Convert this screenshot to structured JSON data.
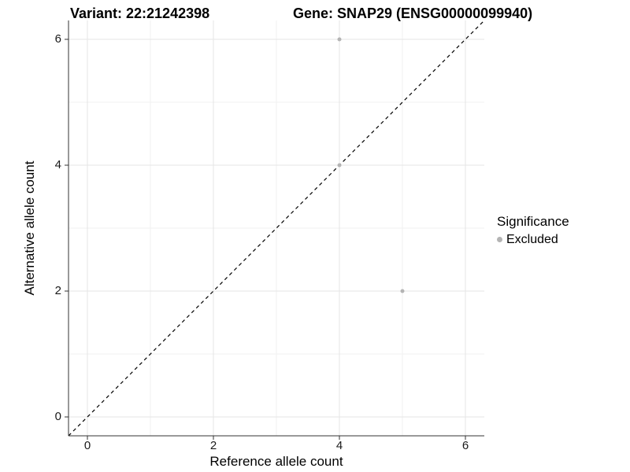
{
  "chart_data": {
    "type": "scatter",
    "titles": {
      "left": "Variant: 22:21242398",
      "right": "Gene: SNAP29 (ENSG00000099940)"
    },
    "xlabel": "Reference allele count",
    "ylabel": "Alternative allele count",
    "xlim": [
      -0.3,
      6.3
    ],
    "ylim": [
      -0.3,
      6.3
    ],
    "x_ticks": [
      0,
      2,
      4,
      6
    ],
    "y_ticks": [
      0,
      2,
      4,
      6
    ],
    "x_minor_ticks": [
      1,
      3,
      5
    ],
    "y_minor_ticks": [
      1,
      3,
      5
    ],
    "grid": true,
    "series": [
      {
        "name": "Excluded",
        "color": "#b4b4b4",
        "points": [
          {
            "x": 4,
            "y": 6
          },
          {
            "x": 4,
            "y": 4
          },
          {
            "x": 5,
            "y": 2
          }
        ]
      }
    ],
    "reference_line": {
      "type": "identity",
      "slope": 1,
      "intercept": 0,
      "style": "dashed",
      "color": "#000000"
    },
    "legend": {
      "title": "Significance",
      "position": "right",
      "items": [
        {
          "label": "Excluded",
          "color": "#b4b4b4",
          "marker": "circle"
        }
      ]
    },
    "colors": {
      "panel_background": "#ffffff",
      "grid_major": "#e5e5e5",
      "grid_minor": "#f0f0f0",
      "axis_line": "#333333",
      "tick_label": "#1a1a1a"
    }
  }
}
